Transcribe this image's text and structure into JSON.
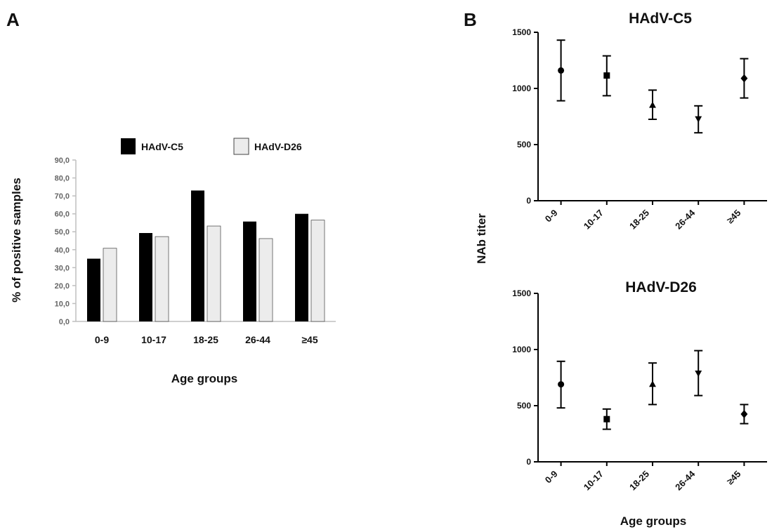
{
  "panels": {
    "a_letter": "A",
    "b_letter": "B"
  },
  "colors": {
    "series_dark": "#000000",
    "series_light": "#ececec",
    "axis_gray": "#bfbfbf",
    "axis_dark": "#000000"
  },
  "markers": [
    "circle",
    "square",
    "triangle-up",
    "triangle-down",
    "diamond"
  ],
  "chart_data": [
    {
      "type": "bar",
      "title": "",
      "xlabel": "Age groups",
      "ylabel": "% of positive samples",
      "categories": [
        "0-9",
        "10-17",
        "18-25",
        "26-44",
        "≥45"
      ],
      "ylim": [
        0,
        90
      ],
      "yticks": [
        "0,0",
        "10,0",
        "20,0",
        "30,0",
        "40,0",
        "50,0",
        "60,0",
        "70,0",
        "80,0",
        "90,0"
      ],
      "legend_placement": "top",
      "series": [
        {
          "name": "HAdV-C5",
          "values": [
            35.0,
            49.3,
            73.0,
            55.7,
            60.0
          ]
        },
        {
          "name": "HAdV-D26",
          "values": [
            40.8,
            47.3,
            53.2,
            46.2,
            56.5
          ]
        }
      ]
    },
    {
      "type": "scatter",
      "title": "HAdV-C5",
      "xlabel": "",
      "ylabel": "NAb titer",
      "categories": [
        "0-9",
        "10-17",
        "18-25",
        "26-44",
        "≥45"
      ],
      "ylim": [
        0,
        1500
      ],
      "yticks": [
        "0",
        "500",
        "1000",
        "1500"
      ],
      "values": [
        1160,
        1115,
        850,
        730,
        1090
      ],
      "error_low": [
        890,
        935,
        725,
        605,
        915
      ],
      "error_high": [
        1430,
        1290,
        985,
        845,
        1265
      ]
    },
    {
      "type": "scatter",
      "title": "HAdV-D26",
      "xlabel": "Age groups",
      "ylabel": "",
      "categories": [
        "0-9",
        "10-17",
        "18-25",
        "26-44",
        "≥45"
      ],
      "ylim": [
        0,
        1500
      ],
      "yticks": [
        "0",
        "500",
        "1000",
        "1500"
      ],
      "values": [
        690,
        380,
        690,
        790,
        425
      ],
      "error_low": [
        480,
        290,
        510,
        590,
        340
      ],
      "error_high": [
        895,
        470,
        880,
        990,
        510
      ]
    }
  ]
}
